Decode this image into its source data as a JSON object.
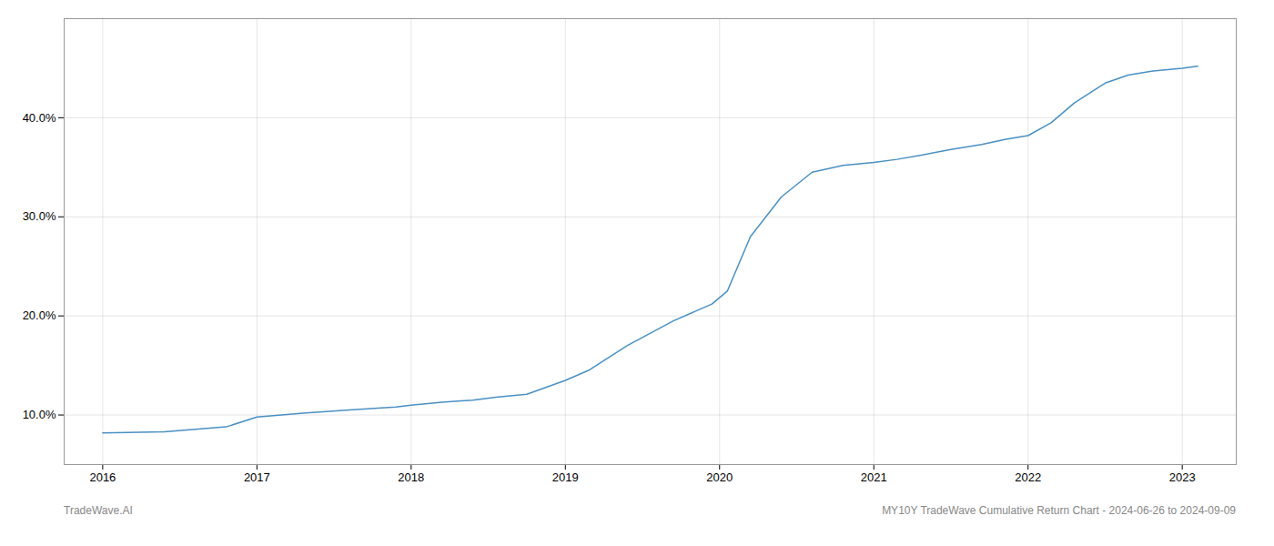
{
  "chart_data": {
    "type": "line",
    "x": [
      2016.0,
      2016.4,
      2016.8,
      2017.0,
      2017.3,
      2017.6,
      2017.9,
      2018.0,
      2018.2,
      2018.4,
      2018.55,
      2018.75,
      2019.0,
      2019.15,
      2019.4,
      2019.7,
      2019.95,
      2020.05,
      2020.2,
      2020.4,
      2020.6,
      2020.8,
      2021.0,
      2021.15,
      2021.3,
      2021.5,
      2021.7,
      2021.85,
      2022.0,
      2022.15,
      2022.3,
      2022.5,
      2022.65,
      2022.8,
      2023.0,
      2023.1
    ],
    "values": [
      8.2,
      8.3,
      8.8,
      9.8,
      10.2,
      10.5,
      10.8,
      11.0,
      11.3,
      11.5,
      11.8,
      12.1,
      13.5,
      14.5,
      17.0,
      19.5,
      21.2,
      22.5,
      28.0,
      32.0,
      34.5,
      35.2,
      35.5,
      35.8,
      36.2,
      36.8,
      37.3,
      37.8,
      38.2,
      39.5,
      41.5,
      43.5,
      44.3,
      44.7,
      45.0,
      45.2
    ],
    "color": "#4a90c4",
    "xlim": [
      2015.75,
      2023.35
    ],
    "xticks": [
      2016,
      2017,
      2018,
      2019,
      2020,
      2021,
      2022,
      2023
    ],
    "ylim": [
      5.0,
      50.0
    ],
    "yticks": [
      {
        "value": 10.0,
        "label": "10.0%"
      },
      {
        "value": 20.0,
        "label": "20.0%"
      },
      {
        "value": 30.0,
        "label": "30.0%"
      },
      {
        "value": 40.0,
        "label": "40.0%"
      }
    ],
    "grid": true,
    "annotations": [
      "TradeWave.AI",
      "MY10Y TradeWave Cumulative Return Chart - 2024-06-26 to 2024-09-09"
    ]
  }
}
